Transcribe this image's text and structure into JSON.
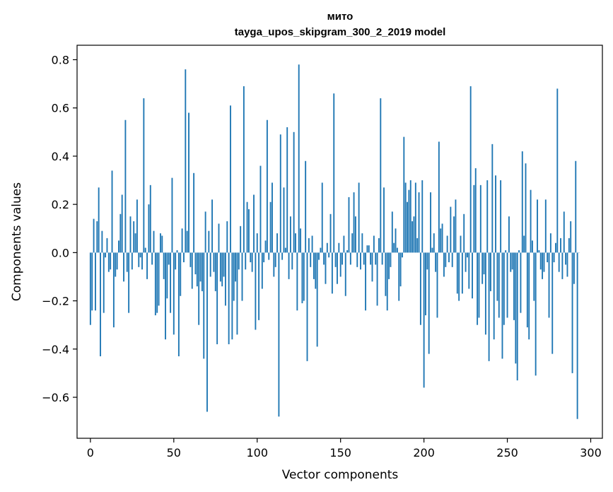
{
  "chart_data": {
    "type": "bar",
    "title_line1": "мито",
    "title_line2": "tayga_upos_skipgram_300_2_2019 model",
    "xlabel": "Vector components",
    "ylabel": "Components values",
    "xlim": [
      -8,
      307
    ],
    "ylim": [
      -0.77,
      0.86
    ],
    "xticks": [
      0,
      50,
      100,
      150,
      200,
      250,
      300
    ],
    "xtick_labels": [
      "0",
      "50",
      "100",
      "150",
      "200",
      "250",
      "300"
    ],
    "yticks": [
      -0.6,
      -0.4,
      -0.2,
      0.0,
      0.2,
      0.4,
      0.6,
      0.8
    ],
    "ytick_labels": [
      "−0.6",
      "−0.4",
      "−0.2",
      "0.0",
      "0.2",
      "0.4",
      "0.6",
      "0.8"
    ],
    "bar_color": "#1f77b4",
    "values": [
      -0.3,
      -0.24,
      0.14,
      -0.24,
      0.13,
      0.27,
      -0.43,
      0.09,
      -0.25,
      -0.02,
      0.06,
      -0.08,
      -0.07,
      0.34,
      -0.31,
      -0.1,
      -0.07,
      0.05,
      0.16,
      0.24,
      -0.12,
      0.55,
      -0.08,
      -0.25,
      0.15,
      -0.07,
      0.13,
      0.08,
      0.22,
      -0.06,
      -0.02,
      -0.07,
      0.64,
      0.02,
      -0.11,
      0.2,
      0.28,
      -0.05,
      0.09,
      -0.26,
      -0.25,
      -0.22,
      0.08,
      0.07,
      -0.11,
      -0.36,
      -0.19,
      -0.05,
      -0.25,
      0.31,
      -0.34,
      -0.07,
      0.01,
      -0.43,
      -0.18,
      0.1,
      -0.04,
      0.76,
      0.09,
      0.58,
      -0.06,
      -0.15,
      0.33,
      -0.09,
      -0.14,
      -0.3,
      -0.12,
      -0.16,
      -0.44,
      0.17,
      -0.66,
      0.09,
      -0.1,
      0.22,
      -0.08,
      -0.16,
      -0.38,
      0.12,
      -0.12,
      -0.14,
      -0.1,
      -0.22,
      0.13,
      -0.38,
      0.61,
      -0.36,
      -0.2,
      -0.12,
      -0.34,
      -0.07,
      0.11,
      -0.2,
      0.69,
      -0.07,
      0.21,
      0.18,
      -0.04,
      -0.08,
      0.24,
      -0.32,
      0.08,
      -0.28,
      0.36,
      -0.15,
      -0.04,
      0.05,
      0.55,
      -0.03,
      0.21,
      0.29,
      -0.1,
      -0.06,
      0.08,
      -0.68,
      0.49,
      -0.03,
      0.27,
      0.02,
      0.52,
      -0.11,
      0.15,
      -0.07,
      0.5,
      0.08,
      -0.24,
      0.78,
      0.1,
      -0.21,
      -0.2,
      0.38,
      -0.45,
      0.06,
      -0.06,
      0.07,
      -0.11,
      -0.15,
      -0.39,
      -0.03,
      0.02,
      0.29,
      -0.05,
      -0.13,
      0.04,
      -0.02,
      0.16,
      -0.17,
      0.66,
      -0.06,
      -0.13,
      0.04,
      -0.1,
      -0.05,
      0.07,
      -0.18,
      0.01,
      0.23,
      -0.05,
      0.08,
      0.25,
      0.15,
      -0.06,
      0.29,
      -0.07,
      0.08,
      -0.05,
      -0.24,
      0.03,
      0.03,
      -0.05,
      -0.12,
      0.07,
      -0.05,
      -0.22,
      0.06,
      0.64,
      -0.05,
      0.27,
      -0.18,
      -0.24,
      -0.11,
      -0.06,
      0.17,
      0.04,
      0.1,
      0.02,
      -0.2,
      -0.14,
      -0.02,
      0.48,
      0.29,
      0.21,
      0.26,
      0.3,
      0.13,
      0.15,
      0.29,
      0.06,
      0.25,
      -0.3,
      0.3,
      -0.56,
      -0.26,
      -0.07,
      -0.42,
      0.25,
      0.02,
      0.08,
      -0.08,
      -0.27,
      0.46,
      0.1,
      0.12,
      -0.1,
      -0.06,
      0.07,
      -0.04,
      0.19,
      -0.06,
      0.15,
      0.22,
      -0.17,
      -0.2,
      0.07,
      -0.17,
      0.16,
      -0.08,
      -0.02,
      -0.15,
      0.69,
      -0.19,
      0.28,
      0.35,
      -0.3,
      -0.27,
      0.28,
      -0.13,
      -0.09,
      -0.34,
      0.3,
      -0.45,
      -0.16,
      0.45,
      -0.36,
      0.32,
      -0.2,
      -0.27,
      0.3,
      -0.44,
      -0.3,
      0.01,
      -0.27,
      0.15,
      -0.08,
      -0.07,
      -0.28,
      -0.46,
      -0.53,
      0.01,
      -0.25,
      0.42,
      0.07,
      0.37,
      -0.31,
      -0.36,
      0.26,
      0.05,
      -0.2,
      -0.51,
      0.22,
      0.01,
      -0.07,
      -0.11,
      -0.08,
      0.22,
      -0.04,
      -0.27,
      0.08,
      -0.42,
      -0.04,
      0.04,
      0.68,
      -0.08,
      0.06,
      -0.11,
      0.17,
      -0.05,
      -0.1,
      0.06,
      0.13,
      -0.5,
      -0.13,
      0.38,
      -0.69,
      0.0
    ]
  }
}
